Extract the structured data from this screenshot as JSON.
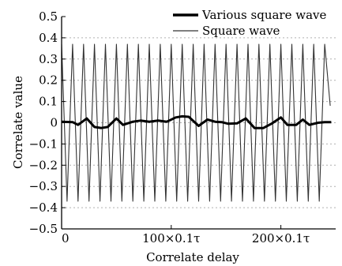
{
  "chart_data": {
    "type": "line",
    "title": "",
    "xlabel": "Correlate delay",
    "ylabel": "Correlate value",
    "xlim": [
      0,
      25
    ],
    "ylim": [
      -0.5,
      0.5
    ],
    "yticks": [
      "0.5",
      "0.4",
      "0.3",
      "0.2",
      "0.1",
      "0",
      "−0.1",
      "−0.2",
      "−0.3",
      "−0.4",
      "−0.5"
    ],
    "xticks": [
      "0",
      "100×0.1τ",
      "200×0.1τ"
    ],
    "grid": "horizontal dotted",
    "legend_position": "top-right",
    "colors": {
      "various": "#000000",
      "square": "#333333",
      "grid": "#b0b0b0",
      "axis": "#000000"
    },
    "series": [
      {
        "name": "Various square wave",
        "style": "thick",
        "x": [
          0,
          1,
          1.5,
          2.3,
          3,
          3.6,
          4.2,
          5,
          5.6,
          6.5,
          7.2,
          8,
          8.8,
          9.6,
          10.4,
          11,
          11.6,
          12.5,
          13.3,
          14,
          14.6,
          15.2,
          16,
          16.8,
          17.6,
          18.4,
          19.2,
          20,
          20.6,
          21.4,
          22,
          22.6,
          23.4,
          24,
          24.6
        ],
        "y": [
          0.005,
          0.003,
          -0.01,
          0.02,
          -0.02,
          -0.025,
          -0.02,
          0.02,
          -0.01,
          0.005,
          0.01,
          0.005,
          0.01,
          0.005,
          0.025,
          0.03,
          0.028,
          -0.015,
          0.015,
          0.005,
          0.003,
          -0.005,
          -0.003,
          0.02,
          -0.025,
          -0.025,
          -0.003,
          0.025,
          -0.01,
          -0.01,
          0.015,
          -0.01,
          0.0,
          0.003,
          0.003
        ]
      },
      {
        "name": "Square wave",
        "style": "thin",
        "x": [
          0,
          0.5,
          1,
          1.5,
          2,
          2.5,
          3,
          3.5,
          4,
          4.5,
          5,
          5.5,
          6,
          6.5,
          7,
          7.5,
          8,
          8.5,
          9,
          9.5,
          10,
          10.5,
          11,
          11.5,
          12,
          12.5,
          13,
          13.5,
          14,
          14.5,
          15,
          15.5,
          16,
          16.5,
          17,
          17.5,
          18,
          18.5,
          19,
          19.5,
          20,
          20.5,
          21,
          21.5,
          22,
          22.5,
          23,
          23.5,
          24,
          24.5
        ],
        "y": [
          0.37,
          -0.37,
          0.37,
          -0.37,
          0.37,
          -0.37,
          0.37,
          -0.37,
          0.37,
          -0.37,
          0.37,
          -0.37,
          0.37,
          -0.37,
          0.37,
          -0.37,
          0.37,
          -0.37,
          0.37,
          -0.37,
          0.37,
          -0.37,
          0.37,
          -0.37,
          0.37,
          -0.37,
          0.37,
          -0.37,
          0.37,
          -0.37,
          0.37,
          -0.37,
          0.37,
          -0.37,
          0.37,
          -0.37,
          0.37,
          -0.37,
          0.37,
          -0.37,
          0.37,
          -0.37,
          0.37,
          -0.37,
          0.37,
          -0.37,
          0.37,
          -0.37,
          0.37,
          0.08
        ]
      }
    ]
  }
}
